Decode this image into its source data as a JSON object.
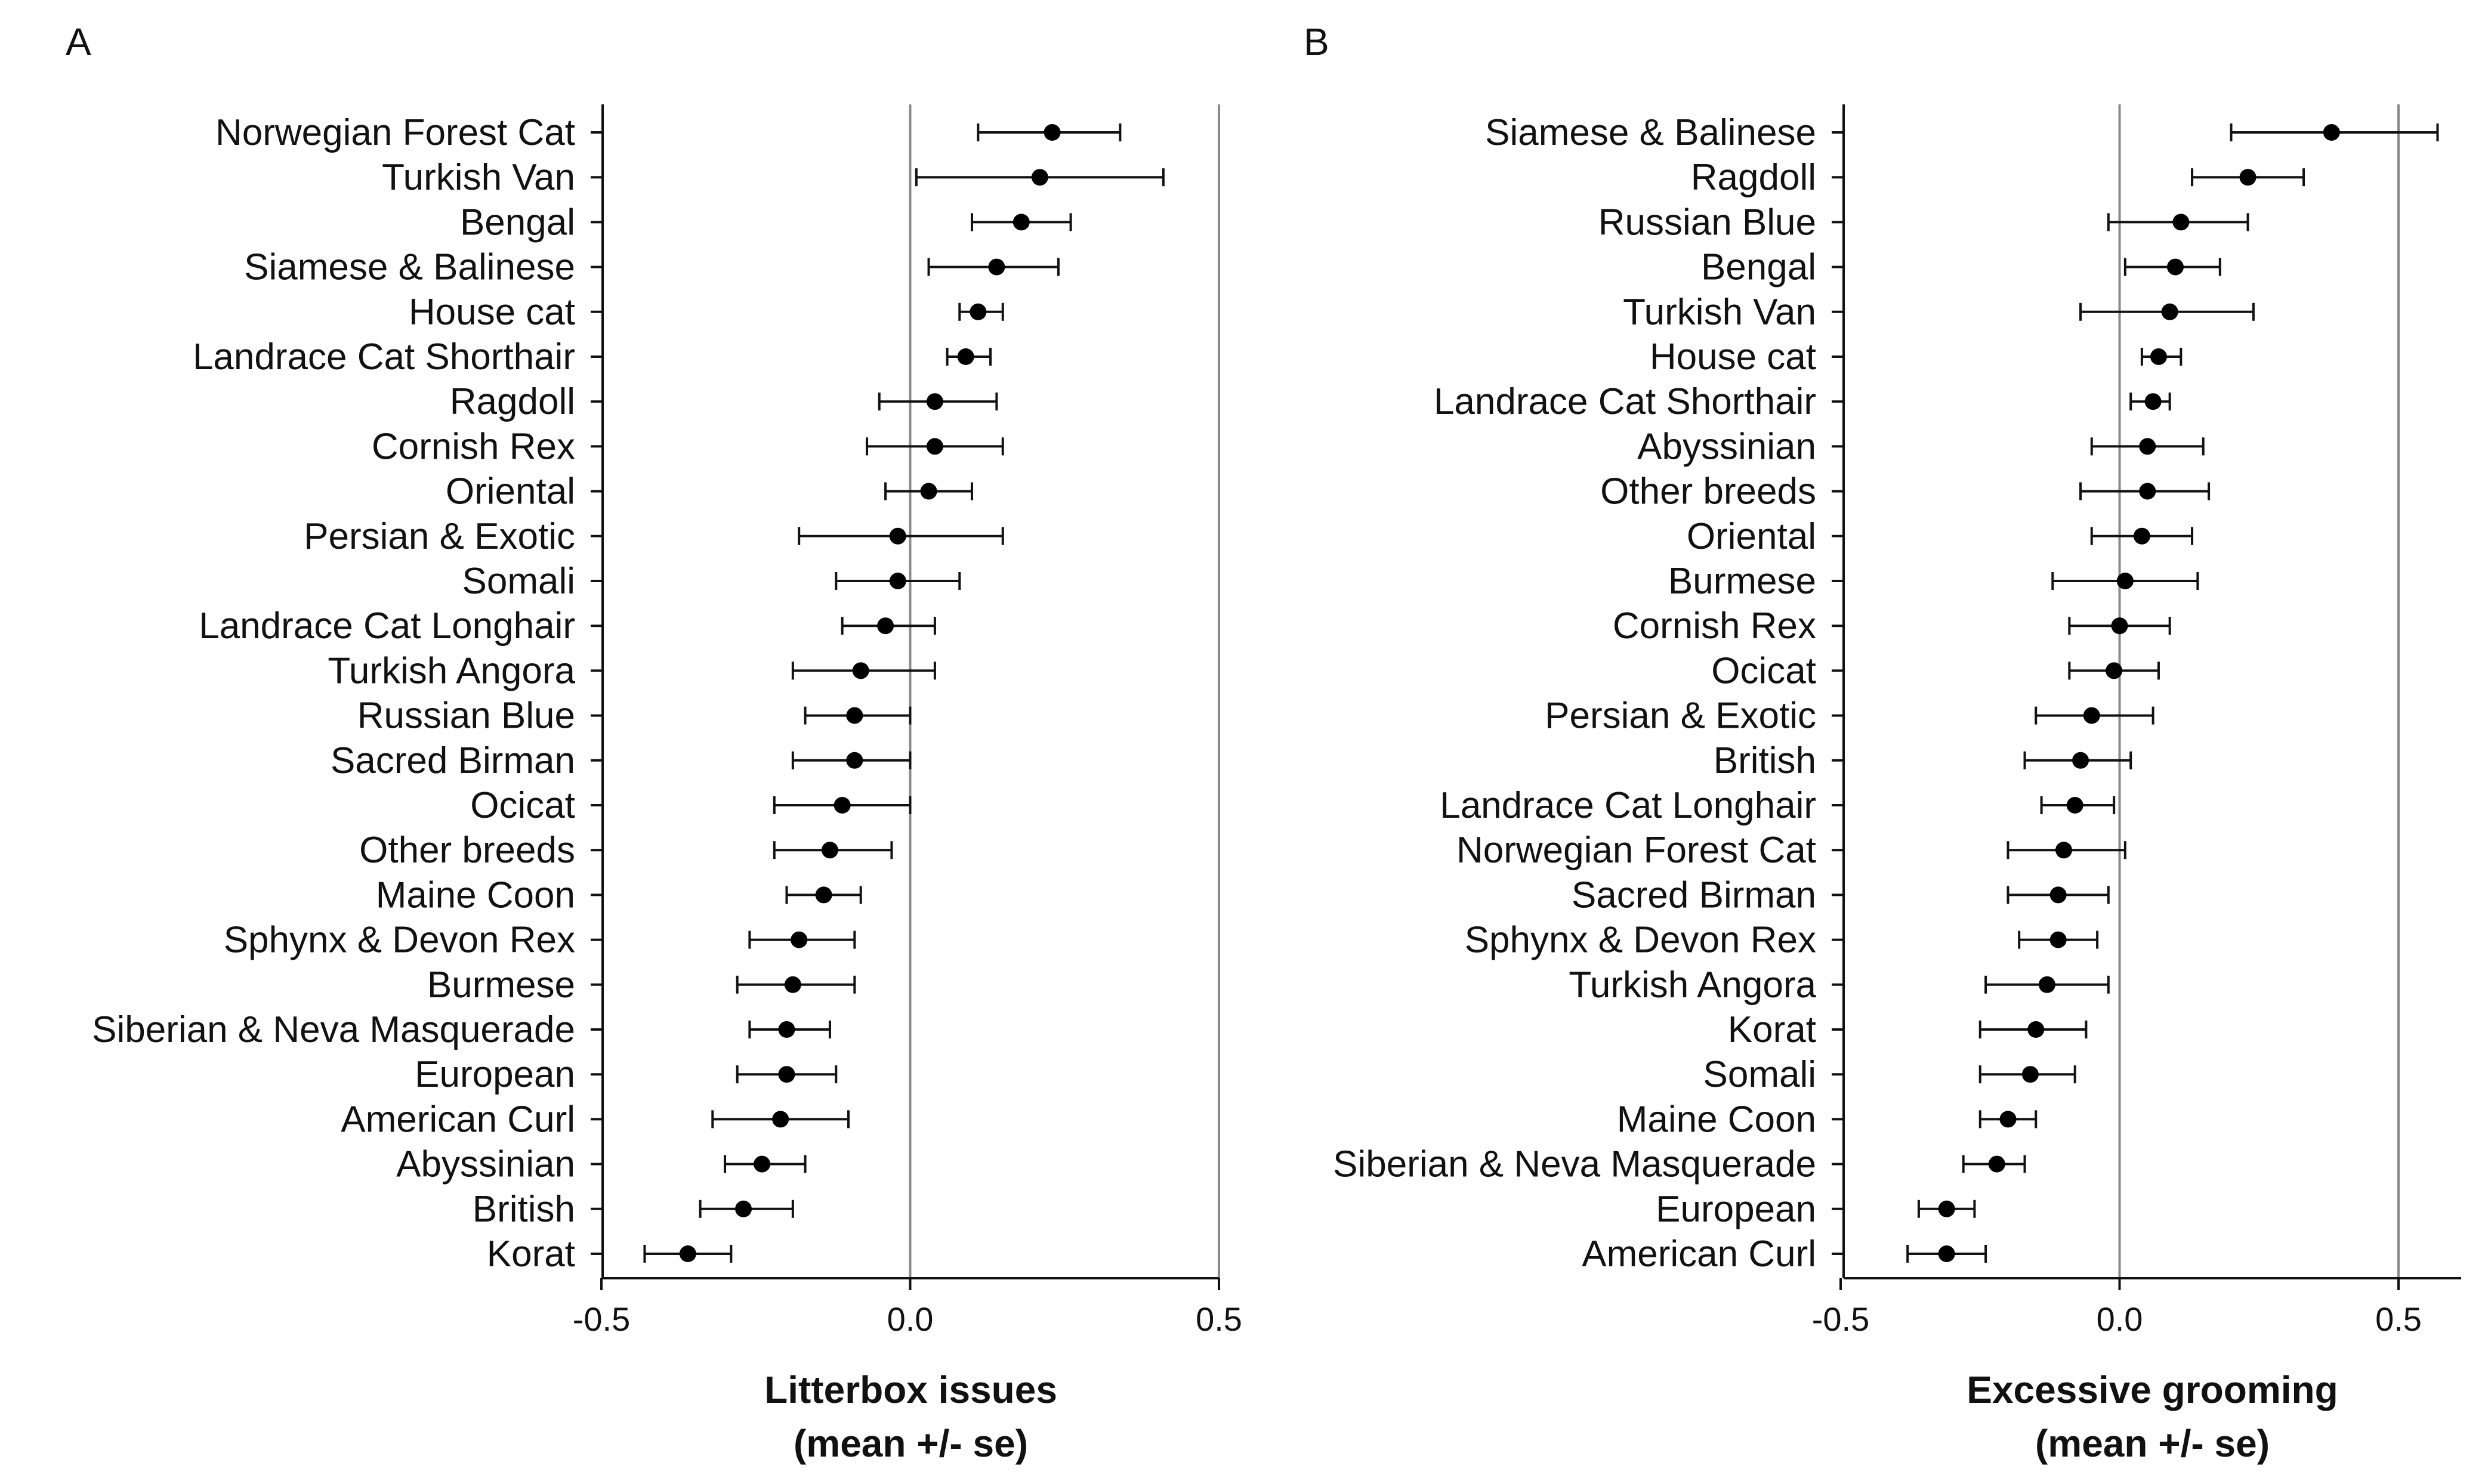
{
  "chart_data": [
    {
      "type": "forest",
      "panel": "A",
      "xlabel": "Litterbox issues",
      "xlabel2": "(mean +/- se)",
      "xlim": [
        -0.5,
        0.5
      ],
      "xticks": [
        -0.5,
        0.0,
        0.5
      ],
      "xtick_labels": [
        "-0.5",
        "0.0",
        "0.5"
      ],
      "reference_lines": [
        0,
        0.5
      ],
      "categories": [
        "Norwegian Forest Cat",
        "Turkish Van",
        "Bengal",
        "Siamese & Balinese",
        "House cat",
        "Landrace Cat Shorthair",
        "Ragdoll",
        "Cornish Rex",
        "Oriental",
        "Persian & Exotic",
        "Somali",
        "Landrace Cat Longhair",
        "Turkish Angora",
        "Russian Blue",
        "Sacred Birman",
        "Ocicat",
        "Other breeds",
        "Maine Coon",
        "Sphynx & Devon Rex",
        "Burmese",
        "Siberian & Neva Masquerade",
        "European",
        "American Curl",
        "Abyssinian",
        "British",
        "Korat"
      ],
      "values": [
        0.23,
        0.21,
        0.18,
        0.14,
        0.11,
        0.09,
        0.04,
        0.04,
        0.03,
        -0.02,
        -0.02,
        -0.04,
        -0.08,
        -0.09,
        -0.09,
        -0.11,
        -0.13,
        -0.14,
        -0.18,
        -0.19,
        -0.2,
        -0.2,
        -0.21,
        -0.24,
        -0.27,
        -0.36
      ],
      "lower": [
        0.11,
        0.01,
        0.1,
        0.03,
        0.08,
        0.06,
        -0.05,
        -0.07,
        -0.04,
        -0.18,
        -0.12,
        -0.11,
        -0.19,
        -0.17,
        -0.19,
        -0.22,
        -0.22,
        -0.2,
        -0.26,
        -0.28,
        -0.26,
        -0.28,
        -0.32,
        -0.3,
        -0.34,
        -0.43
      ],
      "upper": [
        0.34,
        0.41,
        0.26,
        0.24,
        0.15,
        0.13,
        0.14,
        0.15,
        0.1,
        0.15,
        0.08,
        0.04,
        0.04,
        0.0,
        0.0,
        0.0,
        -0.03,
        -0.08,
        -0.09,
        -0.09,
        -0.13,
        -0.12,
        -0.1,
        -0.17,
        -0.19,
        -0.29
      ]
    },
    {
      "type": "forest",
      "panel": "B",
      "xlabel": "Excessive grooming",
      "xlabel2": "(mean +/- se)",
      "xlim": [
        -0.5,
        0.6
      ],
      "xticks": [
        -0.5,
        0.0,
        0.5
      ],
      "xtick_labels": [
        "-0.5",
        "0.0",
        "0.5"
      ],
      "reference_lines": [
        0,
        0.5
      ],
      "categories": [
        "Siamese & Balinese",
        "Ragdoll",
        "Russian Blue",
        "Bengal",
        "Turkish Van",
        "House cat",
        "Landrace Cat Shorthair",
        "Abyssinian",
        "Other breeds",
        "Oriental",
        "Burmese",
        "Cornish Rex",
        "Ocicat",
        "Persian & Exotic",
        "British",
        "Landrace Cat Longhair",
        "Norwegian Forest Cat",
        "Sacred Birman",
        "Sphynx & Devon Rex",
        "Turkish Angora",
        "Korat",
        "Somali",
        "Maine Coon",
        "Siberian & Neva Masquerade",
        "European",
        "American Curl"
      ],
      "values": [
        0.38,
        0.23,
        0.11,
        0.1,
        0.09,
        0.07,
        0.06,
        0.05,
        0.05,
        0.04,
        0.01,
        0.0,
        -0.01,
        -0.05,
        -0.07,
        -0.08,
        -0.1,
        -0.11,
        -0.11,
        -0.13,
        -0.15,
        -0.16,
        -0.2,
        -0.22,
        -0.31,
        -0.31
      ],
      "lower": [
        0.2,
        0.13,
        -0.02,
        0.01,
        -0.07,
        0.04,
        0.02,
        -0.05,
        -0.07,
        -0.05,
        -0.12,
        -0.09,
        -0.09,
        -0.15,
        -0.17,
        -0.14,
        -0.2,
        -0.2,
        -0.18,
        -0.24,
        -0.25,
        -0.25,
        -0.25,
        -0.28,
        -0.36,
        -0.38
      ],
      "upper": [
        0.57,
        0.33,
        0.23,
        0.18,
        0.24,
        0.11,
        0.09,
        0.15,
        0.16,
        0.13,
        0.14,
        0.09,
        0.07,
        0.06,
        0.02,
        -0.01,
        0.01,
        -0.02,
        -0.04,
        -0.02,
        -0.06,
        -0.08,
        -0.15,
        -0.17,
        -0.26,
        -0.24
      ]
    }
  ]
}
